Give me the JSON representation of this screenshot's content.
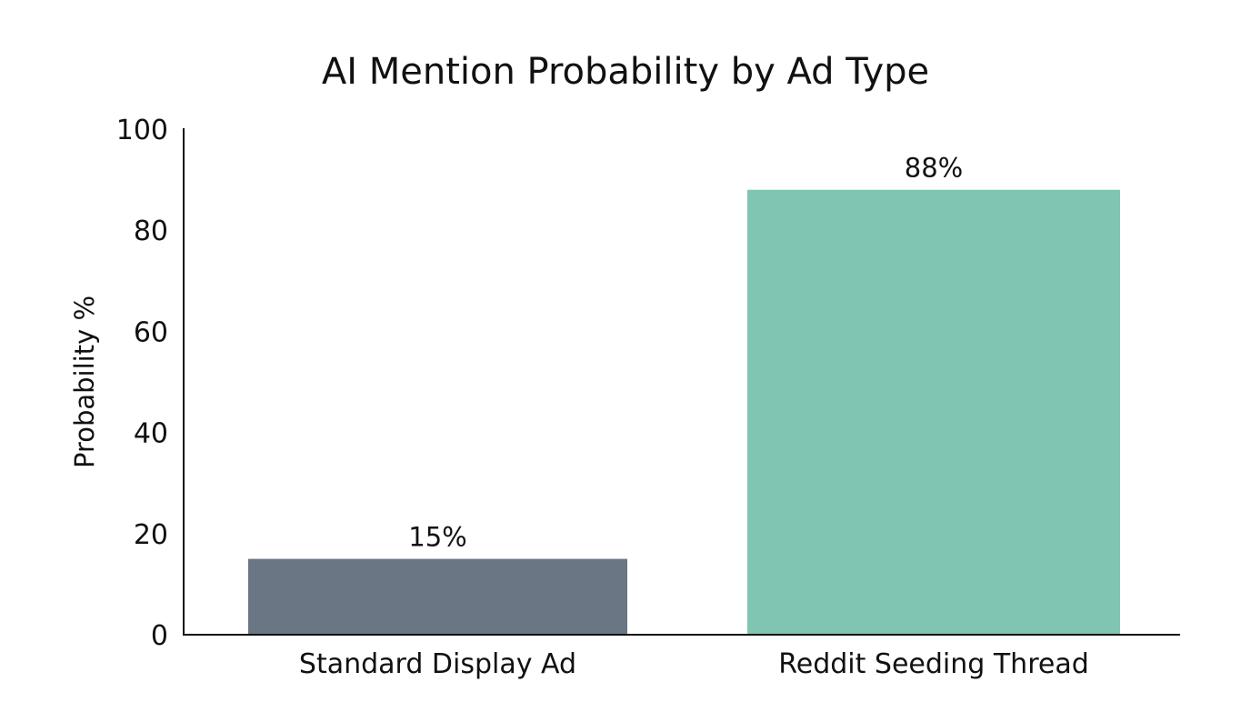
{
  "chart_data": {
    "type": "bar",
    "title": "AI Mention Probability by Ad Type",
    "xlabel": "",
    "ylabel": "Probability %",
    "ylim": [
      0,
      100
    ],
    "yticks": [
      0,
      20,
      40,
      60,
      80,
      100
    ],
    "categories": [
      "Standard Display Ad",
      "Reddit Seeding Thread"
    ],
    "values": [
      15,
      88
    ],
    "data_labels": [
      "15%",
      "88%"
    ],
    "colors": [
      "#6b7685",
      "#80c5b2"
    ],
    "grid": false
  }
}
